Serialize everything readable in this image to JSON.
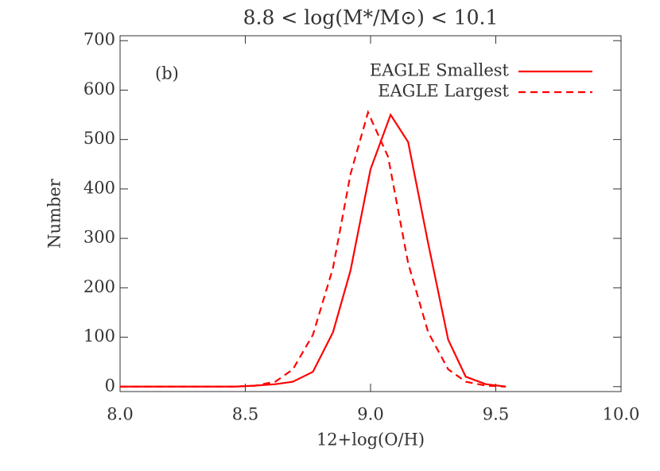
{
  "chart_data": {
    "type": "line",
    "title": "8.8 < log(M*/M⊙) < 10.1",
    "annotation": "(b)",
    "x_label": "12+log(O/H)",
    "y_label": "Number",
    "xlim": [
      8.0,
      10.0
    ],
    "xticks": [
      {
        "value": 8.0,
        "label": "8.0"
      },
      {
        "value": 8.5,
        "label": "8.5"
      },
      {
        "value": 9.0,
        "label": "9.0"
      },
      {
        "value": 9.5,
        "label": "9.5"
      },
      {
        "value": 10.0,
        "label": "10.0"
      }
    ],
    "ylim": [
      -10,
      710
    ],
    "yticks": [
      0,
      100,
      200,
      300,
      400,
      500,
      600,
      700
    ],
    "legend": "upper right",
    "series": [
      {
        "name": "EAGLE Smallest",
        "color": "#ff0000",
        "style": "solid",
        "x": [
          8.0,
          8.46,
          8.54,
          8.62,
          8.69,
          8.77,
          8.85,
          8.92,
          9.0,
          9.08,
          9.15,
          9.23,
          9.31,
          9.38,
          9.46,
          9.54
        ],
        "values": [
          0,
          0,
          2,
          5,
          10,
          30,
          110,
          235,
          440,
          550,
          495,
          290,
          95,
          20,
          5,
          0
        ]
      },
      {
        "name": "EAGLE Largest",
        "color": "#ff0000",
        "style": "dashed",
        "x": [
          8.0,
          8.46,
          8.54,
          8.62,
          8.69,
          8.77,
          8.85,
          8.92,
          8.99,
          9.07,
          9.15,
          9.23,
          9.31,
          9.38,
          9.46,
          9.54
        ],
        "values": [
          0,
          0,
          2,
          10,
          35,
          105,
          240,
          430,
          555,
          465,
          250,
          110,
          35,
          10,
          2,
          0
        ]
      }
    ]
  }
}
